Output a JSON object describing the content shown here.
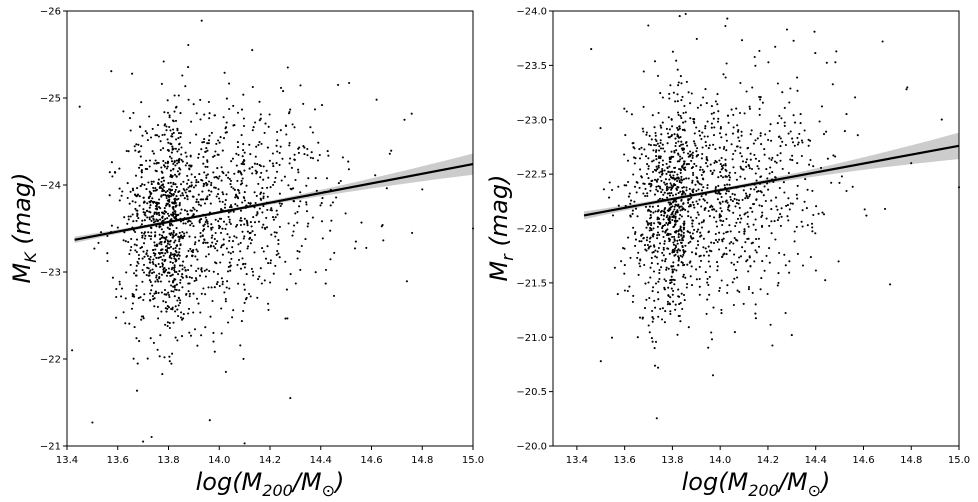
{
  "chart_data": [
    {
      "type": "scatter",
      "title": "",
      "xlabel": "log(M200/M⊙)",
      "ylabel": "MK (mag)",
      "xlim": [
        13.4,
        15.0
      ],
      "ylim": [
        -26,
        -21
      ],
      "y_inverted": true,
      "xticks": [
        "13.4",
        "13.6",
        "13.8",
        "14.0",
        "14.2",
        "14.4",
        "14.6",
        "14.8",
        "15.0"
      ],
      "yticks": [
        "-26",
        "-25",
        "-24",
        "-23",
        "-22",
        "-21"
      ],
      "series": [
        {
          "kind": "points",
          "color": "#000000",
          "approx_count": 1600,
          "x_center": 13.85,
          "x_spread": 0.22,
          "x_min": 13.43,
          "y_center": -23.6,
          "y_spread": 0.62,
          "sampled_points": [
            [
              14.13,
              -25.55
            ],
            [
              14.27,
              -25.35
            ],
            [
              14.62,
              -24.98
            ],
            [
              14.73,
              -24.75
            ],
            [
              13.45,
              -24.9
            ],
            [
              15.0,
              -23.5
            ],
            [
              13.42,
              -22.1
            ],
            [
              13.5,
              -21.27
            ],
            [
              13.7,
              -21.05
            ],
            [
              14.1,
              -21.03
            ],
            [
              14.28,
              -21.55
            ],
            [
              14.8,
              -23.95
            ],
            [
              14.76,
              -23.45
            ]
          ]
        },
        {
          "kind": "regression_line",
          "color": "#000000",
          "x": [
            13.43,
            15.0
          ],
          "y": [
            -23.37,
            -24.24
          ],
          "ci_color": "#cccccc"
        }
      ]
    },
    {
      "type": "scatter",
      "title": "",
      "xlabel": "log(M200/M⊙)",
      "ylabel": "Mr (mag)",
      "xlim": [
        13.3,
        15.0
      ],
      "ylim": [
        -24.0,
        -20.0
      ],
      "y_inverted": true,
      "xticks": [
        "13.4",
        "13.6",
        "13.8",
        "14.0",
        "14.2",
        "14.4",
        "14.6",
        "14.8",
        "15.0"
      ],
      "yticks": [
        "-24.0",
        "-23.5",
        "-23.0",
        "-22.5",
        "-22.0",
        "-21.5",
        "-21.0",
        "-20.5",
        "-20.0"
      ],
      "series": [
        {
          "kind": "points",
          "color": "#000000",
          "approx_count": 1500,
          "x_center": 13.85,
          "x_spread": 0.22,
          "x_min": 13.43,
          "y_center": -22.25,
          "y_spread": 0.5,
          "sampled_points": [
            [
              14.03,
              -23.93
            ],
            [
              14.28,
              -23.83
            ],
            [
              14.68,
              -23.72
            ],
            [
              14.78,
              -23.28
            ],
            [
              13.46,
              -23.65
            ],
            [
              15.0,
              -22.38
            ],
            [
              13.5,
              -20.78
            ],
            [
              13.74,
              -20.72
            ],
            [
              13.97,
              -20.65
            ],
            [
              14.3,
              -21.02
            ],
            [
              14.8,
              -22.6
            ],
            [
              14.69,
              -22.18
            ]
          ]
        },
        {
          "kind": "regression_line",
          "color": "#000000",
          "x": [
            13.43,
            15.0
          ],
          "y": [
            -22.12,
            -22.76
          ],
          "ci_color": "#cccccc"
        }
      ]
    }
  ]
}
